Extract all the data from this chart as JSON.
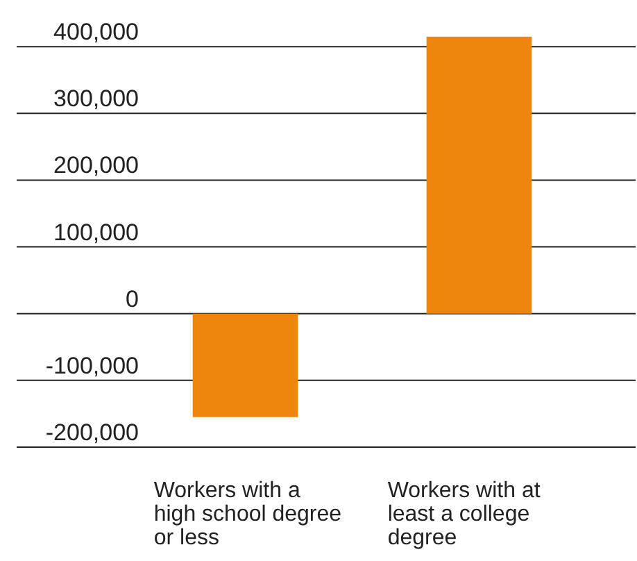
{
  "chart_data": {
    "type": "bar",
    "categories": [
      "Workers with a high school degree or less",
      "Workers with at least a college degree"
    ],
    "values": [
      -155000,
      415000
    ],
    "color": "#ee860e",
    "ylim": [
      -200000,
      420000
    ],
    "yticks": [
      {
        "value": -200000,
        "label": "-200,000"
      },
      {
        "value": -100000,
        "label": "-100,000"
      },
      {
        "value": 0,
        "label": "0"
      },
      {
        "value": 100000,
        "label": "100,000"
      },
      {
        "value": 200000,
        "label": "200,000"
      },
      {
        "value": 300000,
        "label": "300,000"
      },
      {
        "value": 400000,
        "label": "400,000"
      }
    ],
    "grid": true
  }
}
